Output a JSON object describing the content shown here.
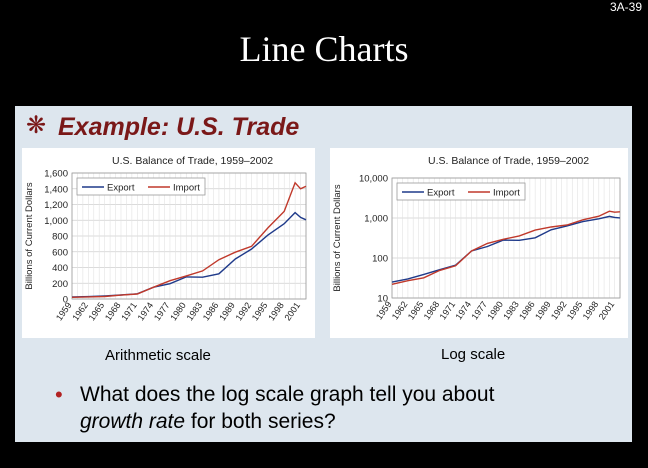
{
  "slide": {
    "number": "3A-39",
    "title": "Line Charts",
    "heading": "Example:  U.S. Trade",
    "caption_left": "Arithmetic scale",
    "caption_right": "Log scale",
    "question_prefix": "What does the log scale graph tell you about",
    "question_emphasis": "growth rate",
    "question_suffix": " for both series?",
    "colors": {
      "export": "#1f3a8a",
      "import": "#c0392b",
      "heading": "#7a1818",
      "background": "#000000"
    }
  },
  "chart_data": [
    {
      "type": "line",
      "title": "U.S. Balance of Trade, 1959–2002",
      "ylabel": "Billions of Current Dollars",
      "xlabel": "",
      "scale": "linear",
      "ylim": [
        0,
        1600
      ],
      "yticks": [
        "0",
        "200",
        "400",
        "600",
        "800",
        "1,000",
        "1,200",
        "1,400",
        "1,600"
      ],
      "ytick_values": [
        0,
        200,
        400,
        600,
        800,
        1000,
        1200,
        1400,
        1600
      ],
      "xticks": [
        "1959",
        "1962",
        "1965",
        "1968",
        "1971",
        "1974",
        "1977",
        "1980",
        "1983",
        "1986",
        "1989",
        "1992",
        "1995",
        "1998",
        "2001"
      ],
      "grid": true,
      "legend": "top-left",
      "x": [
        1959,
        1962,
        1965,
        1968,
        1971,
        1974,
        1977,
        1980,
        1983,
        1986,
        1989,
        1992,
        1995,
        1998,
        2000,
        2001,
        2002
      ],
      "series": [
        {
          "name": "Export",
          "values": [
            25,
            30,
            39,
            51,
            66,
            150,
            194,
            281,
            277,
            320,
            508,
            635,
            812,
            956,
            1097,
            1036,
            1006
          ]
        },
        {
          "name": "Import",
          "values": [
            22,
            27,
            32,
            49,
            64,
            150,
            232,
            293,
            357,
            499,
            594,
            669,
            903,
            1112,
            1475,
            1399,
            1431
          ]
        }
      ]
    },
    {
      "type": "line",
      "title": "U.S. Balance of Trade, 1959–2002",
      "ylabel": "Billions of Current Dollars",
      "xlabel": "",
      "scale": "log",
      "ylim": [
        10,
        10000
      ],
      "yticks": [
        "10",
        "100",
        "1,000",
        "10,000"
      ],
      "ytick_values": [
        10,
        100,
        1000,
        10000
      ],
      "xticks": [
        "1959",
        "1962",
        "1965",
        "1968",
        "1971",
        "1974",
        "1977",
        "1980",
        "1983",
        "1986",
        "1989",
        "1992",
        "1995",
        "1998",
        "2001"
      ],
      "grid": true,
      "legend": "top-left",
      "x": [
        1959,
        1962,
        1965,
        1968,
        1971,
        1974,
        1977,
        1980,
        1983,
        1986,
        1989,
        1992,
        1995,
        1998,
        2000,
        2001,
        2002
      ],
      "series": [
        {
          "name": "Export",
          "values": [
            25,
            30,
            39,
            51,
            66,
            150,
            194,
            281,
            277,
            320,
            508,
            635,
            812,
            956,
            1097,
            1036,
            1006
          ]
        },
        {
          "name": "Import",
          "values": [
            22,
            27,
            32,
            49,
            64,
            150,
            232,
            293,
            357,
            499,
            594,
            669,
            903,
            1112,
            1475,
            1399,
            1431
          ]
        }
      ]
    }
  ]
}
